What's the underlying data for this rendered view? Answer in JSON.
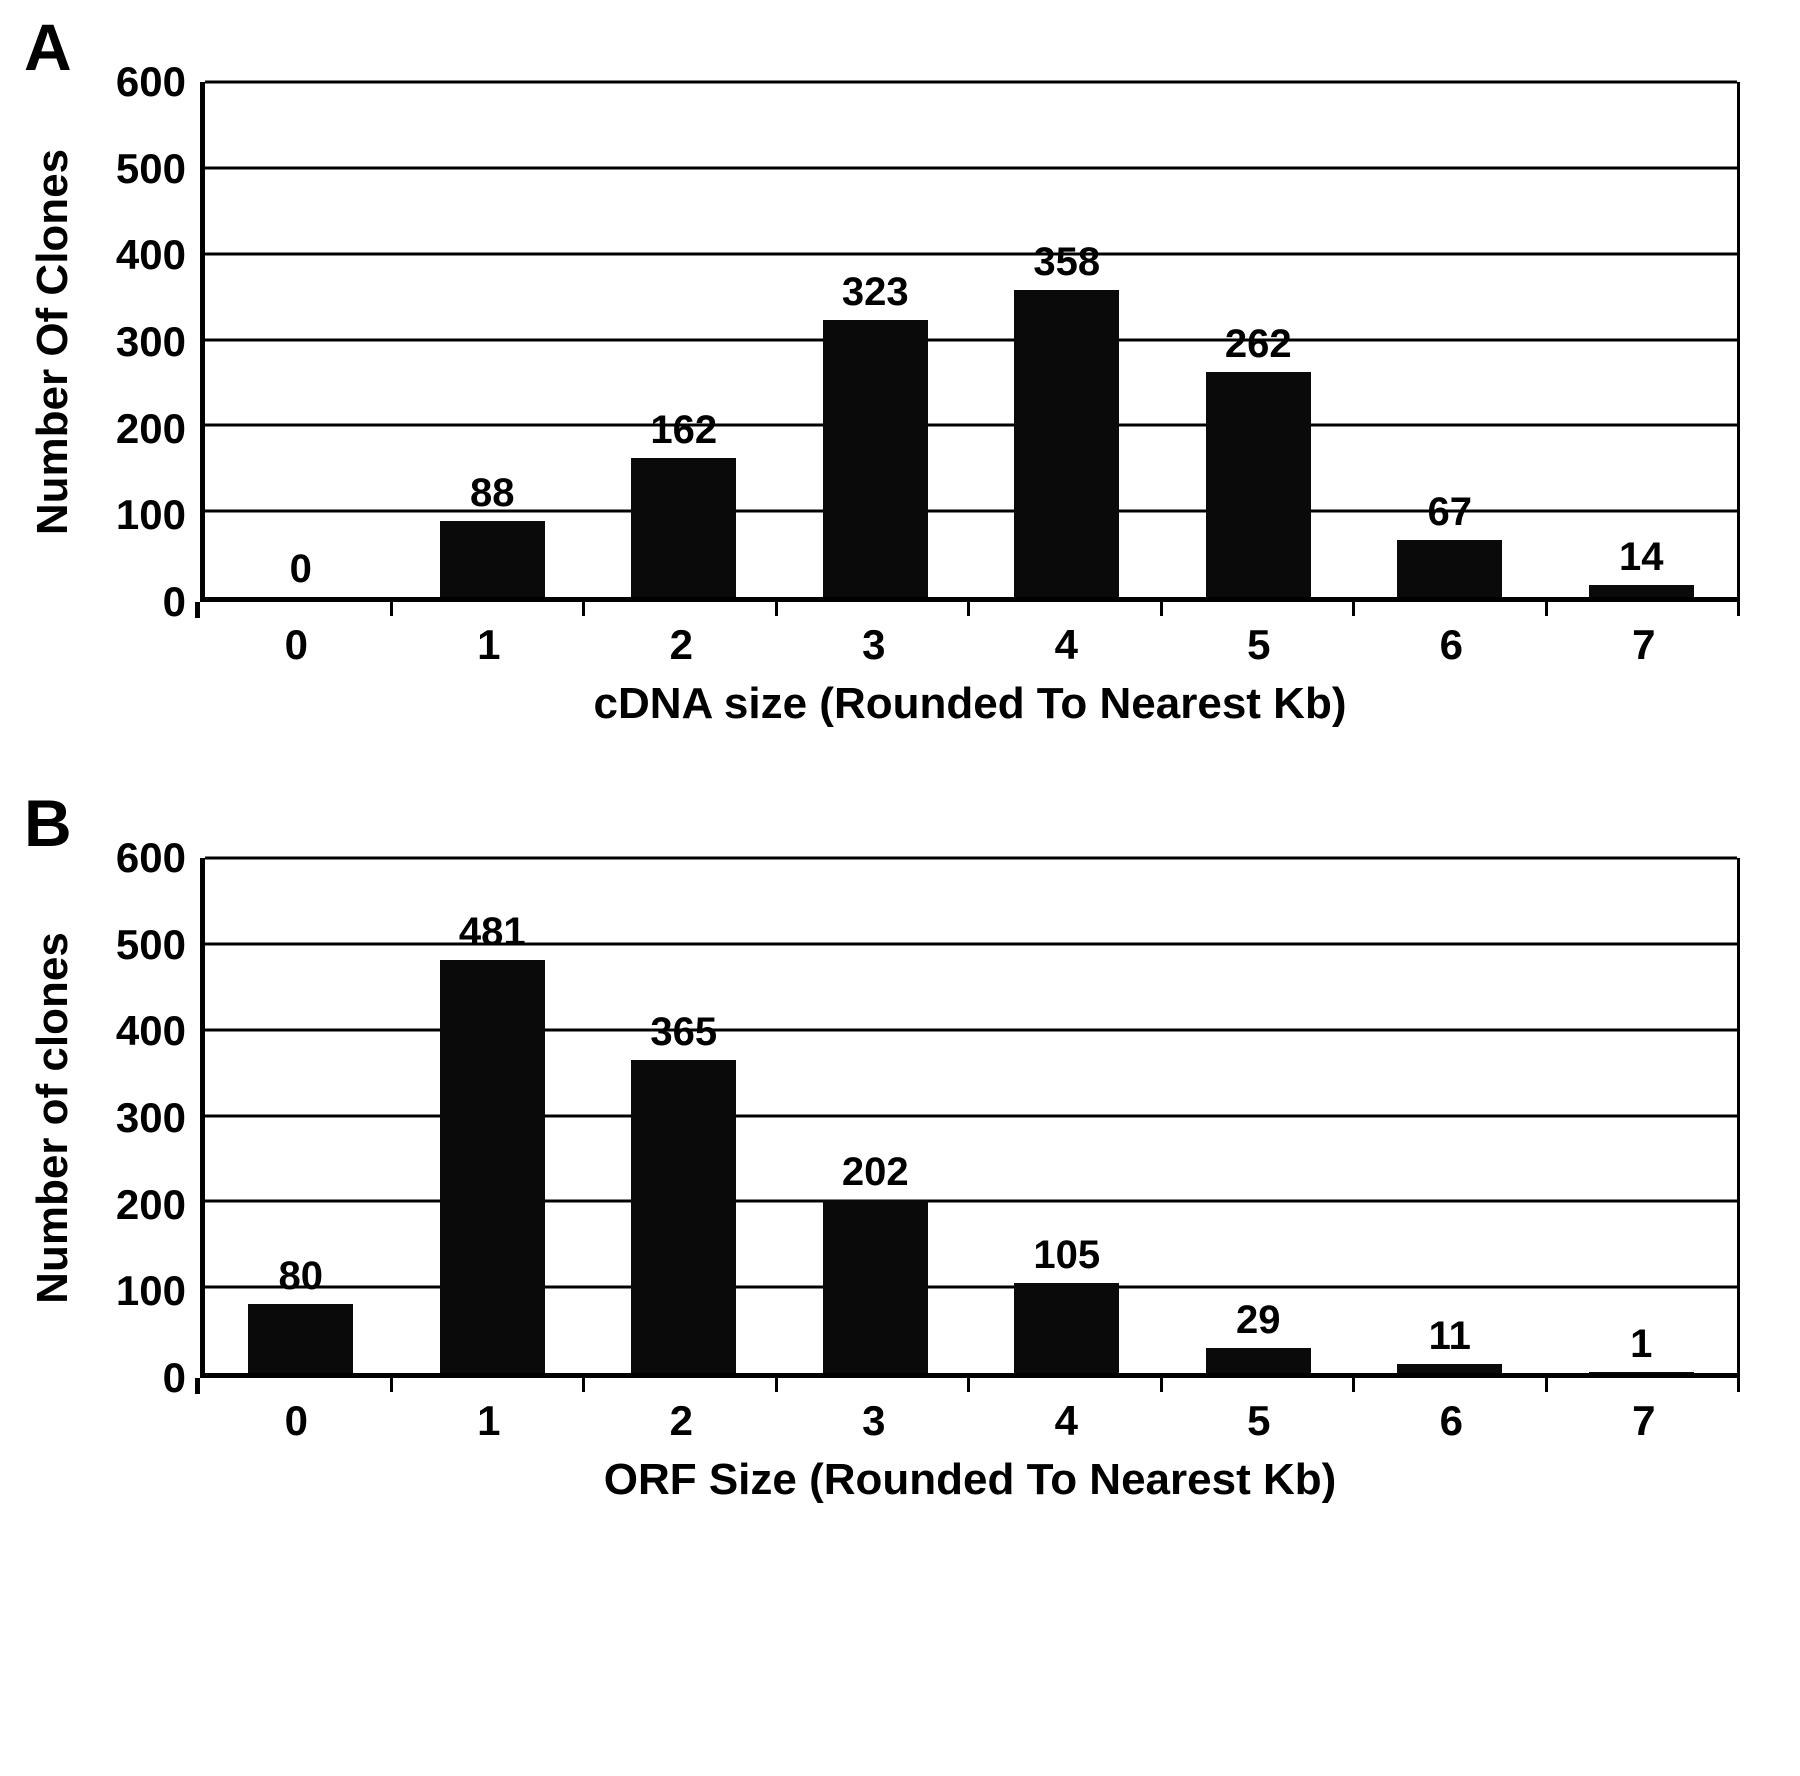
{
  "chart_data": [
    {
      "type": "bar",
      "panel_label": "A",
      "title": "",
      "categories": [
        "0",
        "1",
        "2",
        "3",
        "4",
        "5",
        "6",
        "7"
      ],
      "values": [
        0,
        88,
        162,
        323,
        358,
        262,
        67,
        14
      ],
      "xlabel": "cDNA size (Rounded To Nearest Kb)",
      "ylabel": "Number Of Clones",
      "ylim": [
        0,
        600
      ],
      "ytick_step": 100,
      "grid": true,
      "legend": "none",
      "value_labels_shown": true,
      "bar_color": "#0a0a0a"
    },
    {
      "type": "bar",
      "panel_label": "B",
      "title": "",
      "categories": [
        "0",
        "1",
        "2",
        "3",
        "4",
        "5",
        "6",
        "7"
      ],
      "values": [
        80,
        481,
        365,
        202,
        105,
        29,
        11,
        1
      ],
      "xlabel": "ORF Size (Rounded To Nearest Kb)",
      "ylabel": "Number of clones",
      "ylim": [
        0,
        600
      ],
      "ytick_step": 100,
      "grid": true,
      "legend": "none",
      "value_labels_shown": true,
      "bar_color": "#0a0a0a"
    }
  ]
}
